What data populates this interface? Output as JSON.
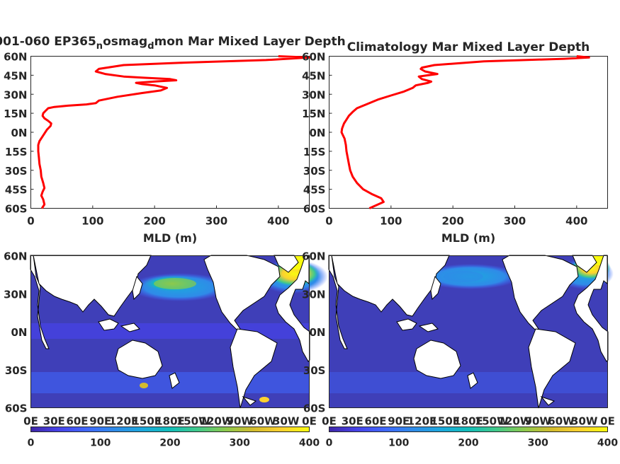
{
  "chart_data": [
    {
      "type": "line",
      "title": "001-060 EP365_nosmag_dmon Mar Mixed Layer Depth",
      "title_parts": [
        "001-060 EP365",
        "n",
        "osmag",
        "d",
        "mon Mar Mixed Layer Depth"
      ],
      "xlabel": "MLD (m)",
      "ylabel": "",
      "xlim": [
        0,
        450
      ],
      "ylim": [
        -60,
        60
      ],
      "xticks": [
        "0",
        "100",
        "200",
        "300",
        "400"
      ],
      "yticks": [
        "60S",
        "45S",
        "30S",
        "15S",
        "0N",
        "15N",
        "30N",
        "45N",
        "60N"
      ],
      "series_color": "#ff0000",
      "x": [
        18,
        22,
        20,
        17,
        19,
        22,
        20,
        17,
        16,
        14,
        13,
        12,
        12,
        14,
        18,
        22,
        26,
        32,
        33,
        28,
        22,
        19,
        20,
        22,
        24,
        26,
        28,
        38,
        60,
        90,
        105,
        110,
        140,
        180,
        210,
        220,
        200,
        180,
        170,
        200,
        235,
        225,
        185,
        150,
        120,
        105,
        110,
        150,
        250,
        380,
        450,
        400
      ],
      "y": [
        -60,
        -57,
        -53,
        -50,
        -47,
        -44,
        -40,
        -35,
        -30,
        -25,
        -20,
        -15,
        -10,
        -7,
        -4,
        -1,
        2,
        5,
        7,
        9,
        11,
        13,
        15,
        16,
        17,
        18,
        19,
        20,
        21,
        22,
        23,
        25,
        28,
        31,
        33,
        35,
        37,
        38,
        39,
        40,
        41,
        42,
        43,
        44,
        46,
        48,
        50,
        53,
        55,
        57,
        59,
        60
      ]
    },
    {
      "type": "line",
      "title": "Climatology Mar Mixed Layer Depth",
      "xlabel": "MLD (m)",
      "ylabel": "",
      "xlim": [
        0,
        450
      ],
      "ylim": [
        -60,
        60
      ],
      "xticks": [
        "0",
        "100",
        "200",
        "300",
        "400"
      ],
      "yticks": [
        "60S",
        "45S",
        "30S",
        "15S",
        "0N",
        "15N",
        "30N",
        "45N",
        "60N"
      ],
      "series_color": "#ff0000",
      "x": [
        65,
        88,
        84,
        70,
        55,
        45,
        38,
        34,
        32,
        30,
        28,
        27,
        25,
        22,
        20,
        21,
        24,
        28,
        32,
        38,
        45,
        60,
        80,
        100,
        120,
        135,
        140,
        150,
        160,
        165,
        150,
        145,
        160,
        175,
        155,
        148,
        150,
        170,
        250,
        380,
        420,
        400
      ],
      "y": [
        -60,
        -55,
        -52,
        -49,
        -45,
        -40,
        -35,
        -30,
        -25,
        -20,
        -15,
        -10,
        -5,
        -2,
        0,
        3,
        7,
        10,
        13,
        16,
        19,
        22,
        26,
        29,
        32,
        35,
        37,
        38,
        39,
        40,
        42,
        44,
        45,
        46,
        48,
        50,
        51,
        53,
        56,
        58,
        59,
        60
      ]
    },
    {
      "type": "heatmap",
      "title": "",
      "xticks": [
        "0E",
        "30E",
        "60E",
        "90E",
        "120E",
        "150E",
        "180E",
        "150W",
        "120W",
        "90W",
        "60W",
        "30W",
        "0E"
      ],
      "yticks": [
        "60S",
        "30S",
        "0N",
        "30N",
        "60N"
      ],
      "lat_range": [
        -60,
        60
      ],
      "lon_range": [
        0,
        360
      ],
      "colorbar": {
        "ticks": [
          "0",
          "100",
          "200",
          "300",
          "400"
        ],
        "range": [
          0,
          400
        ]
      }
    },
    {
      "type": "heatmap",
      "title": "",
      "xticks": [
        "0E",
        "30E",
        "60E",
        "90E",
        "120E",
        "150E",
        "180E",
        "150W",
        "120W",
        "90W",
        "60W",
        "30W",
        "0E"
      ],
      "yticks": [
        "60S",
        "30S",
        "0N",
        "30N",
        "60N"
      ],
      "lat_range": [
        -60,
        60
      ],
      "lon_range": [
        0,
        360
      ],
      "colorbar": {
        "ticks": [
          "0",
          "100",
          "200",
          "300",
          "400"
        ],
        "range": [
          0,
          400
        ]
      }
    }
  ],
  "colors": {
    "ocean_base": "#3f3fb8",
    "land": "#ffffff",
    "coast": "#000000",
    "colormap": [
      "#3e26a8",
      "#4743e8",
      "#4067fd",
      "#2f8be8",
      "#1ca8de",
      "#12beb9",
      "#41c98a",
      "#8cc94d",
      "#d3bb2d",
      "#fcd12f",
      "#f9fb0e"
    ]
  }
}
